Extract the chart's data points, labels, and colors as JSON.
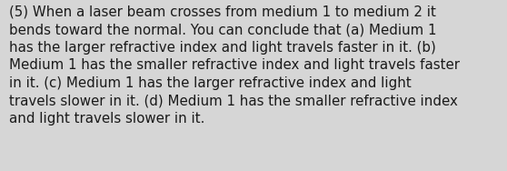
{
  "lines": [
    "(5) When a laser beam crosses from medium 1 to medium 2 it",
    "bends toward the normal. You can conclude that (a) Medium 1",
    "has the larger refractive index and light travels faster in it. (b)",
    "Medium 1 has the smaller refractive index and light travels faster",
    "in it. (c) Medium 1 has the larger refractive index and light",
    "travels slower in it. (d) Medium 1 has the smaller refractive index",
    "and light travels slower in it."
  ],
  "background_color": "#d6d6d6",
  "text_color": "#1a1a1a",
  "font_size": 10.8,
  "fig_width": 5.58,
  "fig_height": 1.88,
  "dpi": 100
}
